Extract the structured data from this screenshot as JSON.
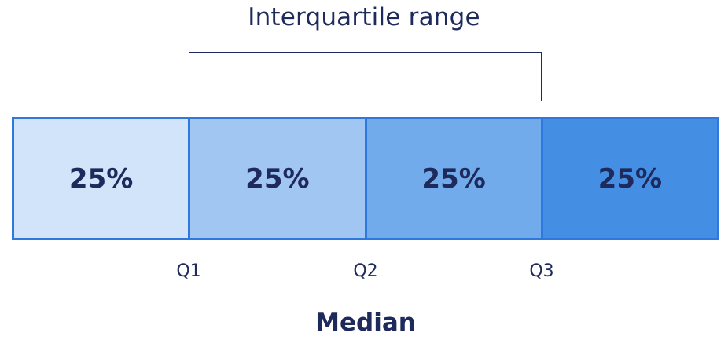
{
  "title": "Interquartile range",
  "segments": [
    {
      "label": "25%",
      "color": "#d1e4fa"
    },
    {
      "label": "25%",
      "color": "#a0c6f1"
    },
    {
      "label": "25%",
      "color": "#72abeb"
    },
    {
      "label": "25%",
      "color": "#448fe3"
    }
  ],
  "quartiles": [
    "Q1",
    "Q2",
    "Q3"
  ],
  "median_label": "Median",
  "colors": {
    "text": "#1e2a5c",
    "border": "#2f78dd"
  }
}
